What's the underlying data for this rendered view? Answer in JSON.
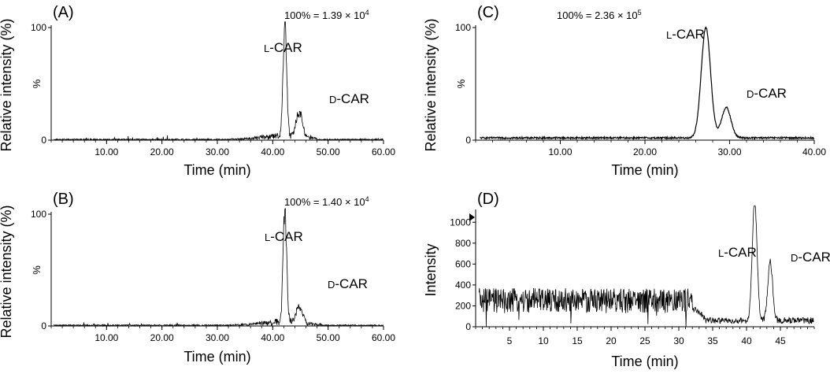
{
  "chart_data": [
    {
      "panel": "(A)",
      "type": "line",
      "xlabel": "Time (min)",
      "ylabel": "Relative intensity (%)",
      "y_mid_label": "%",
      "xlim": [
        0,
        60
      ],
      "ylim": [
        0,
        100
      ],
      "xticks": [
        "10.00",
        "20.00",
        "30.00",
        "40.00",
        "50.00",
        "60.00"
      ],
      "yticks": [
        "0",
        "100"
      ],
      "scale_annotation": "100% = 1.39 × 10^4",
      "scale_text": "100% = 1.39",
      "scale_exp": "4",
      "peak_labels": [
        "L-CAR",
        "D-CAR"
      ],
      "peaks": [
        {
          "name": "L-CAR",
          "time": 42.2,
          "height": 100
        },
        {
          "name": "D-CAR",
          "time": 44.8,
          "height": 22
        }
      ],
      "baseline": {
        "start": 0,
        "end": 60,
        "level": 1
      }
    },
    {
      "panel": "(B)",
      "type": "line",
      "xlabel": "Time (min)",
      "ylabel": "Relative intensity (%)",
      "y_mid_label": "%",
      "xlim": [
        0,
        60
      ],
      "ylim": [
        0,
        100
      ],
      "xticks": [
        "10.00",
        "20.00",
        "30.00",
        "40.00",
        "50.00",
        "60.00"
      ],
      "yticks": [
        "0",
        "100"
      ],
      "scale_annotation": "100% = 1.40 × 10^4",
      "scale_text": "100% = 1.40",
      "scale_exp": "4",
      "peak_labels": [
        "L-CAR",
        "D-CAR"
      ],
      "peaks": [
        {
          "name": "L-CAR",
          "time": 42.2,
          "height": 100
        },
        {
          "name": "D-CAR",
          "time": 44.8,
          "height": 15
        }
      ],
      "baseline": {
        "start": 0,
        "end": 60,
        "level": 1
      }
    },
    {
      "panel": "(C)",
      "type": "line",
      "xlabel": "Time (min)",
      "ylabel": "Relative intensity (%)",
      "y_mid_label": "%",
      "xlim": [
        0,
        40
      ],
      "ylim": [
        0,
        100
      ],
      "xticks": [
        "10.00",
        "20.00",
        "30.00",
        "40.00"
      ],
      "yticks": [
        "0",
        "100"
      ],
      "scale_annotation": "100% = 2.36 × 10^5",
      "scale_text": "100% = 2.36",
      "scale_exp": "5",
      "peak_labels": [
        "L-CAR",
        "D-CAR"
      ],
      "peaks": [
        {
          "name": "L-CAR",
          "time": 27.2,
          "height": 98
        },
        {
          "name": "D-CAR",
          "time": 29.6,
          "height": 27
        }
      ],
      "baseline": {
        "start": 0,
        "end": 40,
        "level": 2
      }
    },
    {
      "panel": "(D)",
      "type": "line",
      "xlabel": "Time (min)",
      "ylabel": "Intensity",
      "xlim": [
        0,
        50
      ],
      "ylim": [
        0,
        1100
      ],
      "xticks": [
        "5",
        "10",
        "15",
        "20",
        "25",
        "30",
        "35",
        "40",
        "45"
      ],
      "yticks": [
        "0",
        "200",
        "400",
        "600",
        "800",
        "1000"
      ],
      "peak_labels": [
        "L-CAR",
        "D-CAR"
      ],
      "peaks": [
        {
          "name": "L-CAR",
          "time": 41.2,
          "height": 1150
        },
        {
          "name": "D-CAR",
          "time": 43.5,
          "height": 560
        }
      ],
      "noise_level": {
        "start": 0,
        "end": 32,
        "mean": 250,
        "amplitude": 120
      },
      "baseline": {
        "start": 33,
        "end": 50,
        "level": 60
      }
    }
  ]
}
